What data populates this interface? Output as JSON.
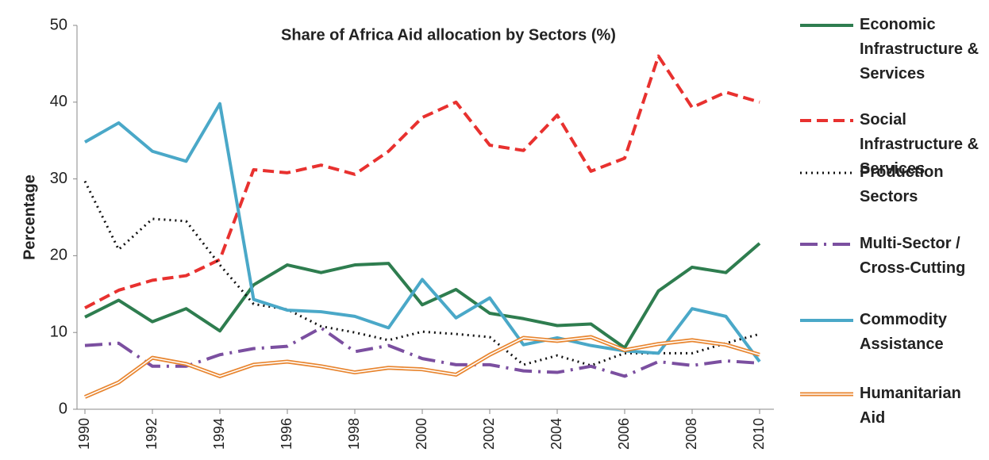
{
  "chart_data": {
    "type": "line",
    "title": "Share of  Africa Aid allocation by Sectors (%)",
    "ylabel": "Percentage",
    "x": [
      1990,
      1991,
      1992,
      1993,
      1994,
      1995,
      1996,
      1997,
      1998,
      1999,
      2000,
      2001,
      2002,
      2003,
      2004,
      2005,
      2006,
      2007,
      2008,
      2009,
      2010
    ],
    "xlim": [
      1990,
      2010
    ],
    "xticks": [
      1990,
      1992,
      1994,
      1996,
      1998,
      2000,
      2002,
      2004,
      2006,
      2008,
      2010
    ],
    "ylim": [
      0,
      50
    ],
    "yticks": [
      0,
      10,
      20,
      30,
      40,
      50
    ],
    "grid": false,
    "legend": "right",
    "series": [
      {
        "name": "Economic Infrastructure & Services",
        "color": "#2e7d4f",
        "dash": "solid",
        "values": [
          12,
          14.2,
          11.4,
          13.1,
          10.2,
          16.2,
          18.8,
          17.8,
          18.8,
          19,
          13.6,
          15.6,
          12.5,
          11.8,
          10.9,
          11.1,
          8,
          15.4,
          18.5,
          17.8,
          21.6
        ]
      },
      {
        "name": "Social Infrastructure & Services",
        "color": "#e8312f",
        "dash": "dashed",
        "values": [
          13.2,
          15.5,
          16.8,
          17.4,
          19.5,
          31.2,
          30.8,
          31.8,
          30.6,
          33.6,
          38,
          40,
          34.4,
          33.7,
          38.3,
          31,
          32.7,
          46,
          39.3,
          41.3,
          40
        ]
      },
      {
        "name": "Production Sectors",
        "color": "#111111",
        "dash": "dotted",
        "values": [
          29.7,
          20.8,
          24.8,
          24.5,
          18.8,
          13.7,
          13,
          10.8,
          10,
          9,
          10.1,
          9.8,
          9.4,
          5.8,
          7,
          5.7,
          7.3,
          7.3,
          7.3,
          8.6,
          9.8
        ]
      },
      {
        "name": "Multi-Sector / Cross-Cutting",
        "color": "#7b4fa0",
        "dash": "dashdot",
        "values": [
          8.3,
          8.6,
          5.6,
          5.6,
          7.1,
          7.9,
          8.2,
          10.6,
          7.5,
          8.3,
          6.6,
          5.8,
          5.8,
          5,
          4.8,
          5.6,
          4.3,
          6.2,
          5.7,
          6.3,
          6
        ]
      },
      {
        "name": "Commodity Assistance",
        "color": "#4aa8c8",
        "dash": "solid",
        "values": [
          34.8,
          37.3,
          33.6,
          32.3,
          39.8,
          14.3,
          12.9,
          12.7,
          12.1,
          10.6,
          16.9,
          11.9,
          14.5,
          8.4,
          9.3,
          8.3,
          7.6,
          7.3,
          13.1,
          12.1,
          6.2
        ]
      },
      {
        "name": "Humanitarian Aid",
        "color": "#e8852f",
        "dash": "double",
        "values": [
          1.6,
          3.5,
          6.7,
          5.9,
          4.3,
          5.8,
          6.2,
          5.6,
          4.8,
          5.4,
          5.2,
          4.5,
          7.1,
          9.3,
          8.9,
          9.4,
          7.7,
          8.5,
          9,
          8.4,
          7.1
        ]
      }
    ]
  }
}
